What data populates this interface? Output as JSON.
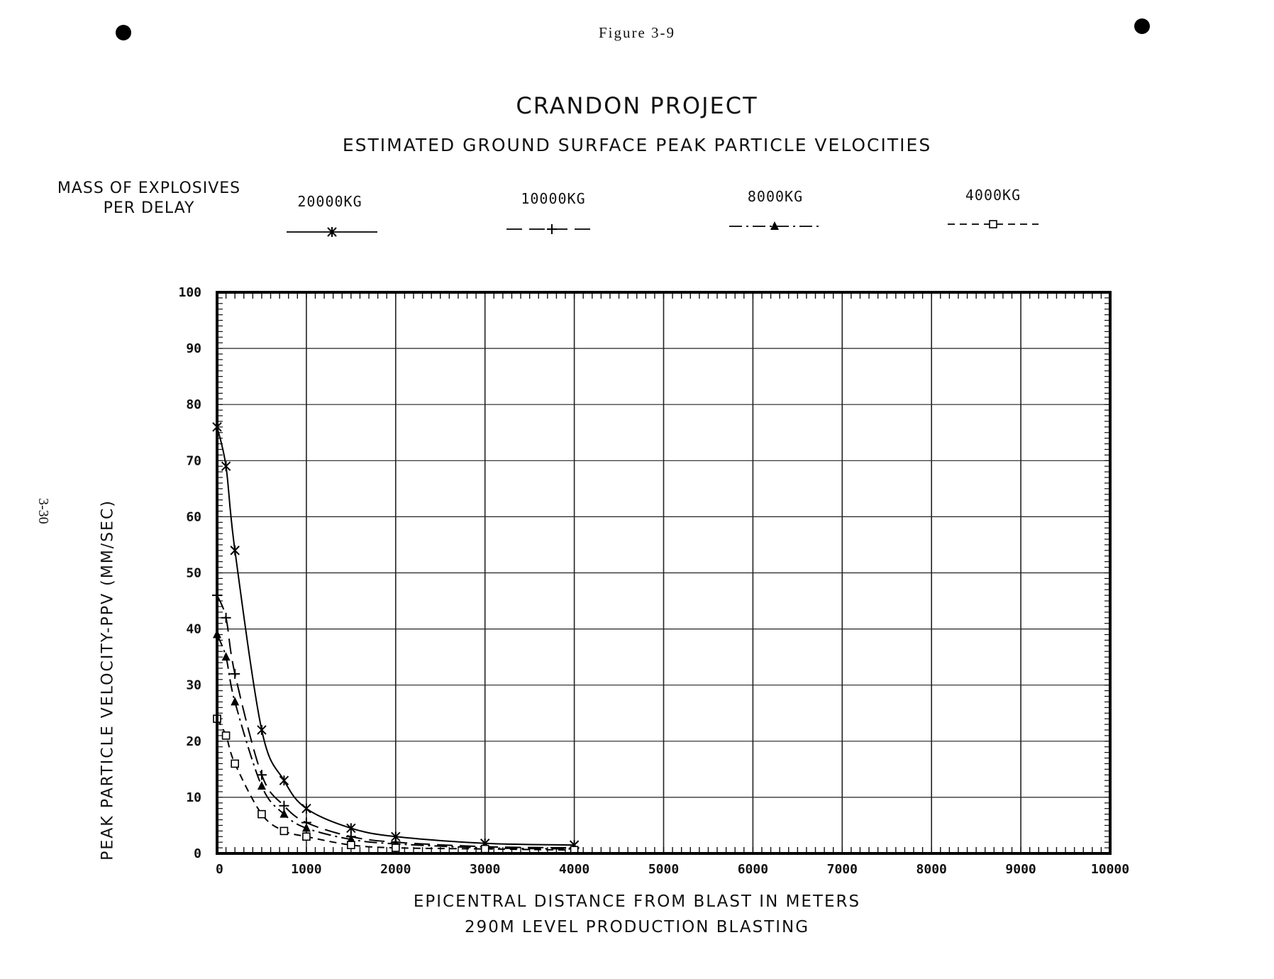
{
  "page": {
    "figure_label": "Figure 3-9",
    "page_number": "3-30",
    "footer": "290M LEVEL PRODUCTION BLASTING"
  },
  "legend": {
    "title_line1": "MASS OF EXPLOSIVES",
    "title_line2": "PER DELAY"
  },
  "chart_data": {
    "type": "line",
    "title": "CRANDON PROJECT",
    "subtitle": "ESTIMATED GROUND SURFACE PEAK PARTICLE VELOCITIES",
    "xlabel": "EPICENTRAL DISTANCE FROM BLAST IN METERS",
    "ylabel": "PEAK PARTICLE VELOCITY-PPV (MM/SEC)",
    "xlim": [
      0,
      10000
    ],
    "ylim": [
      0,
      100
    ],
    "x_ticks": [
      "0",
      "1000",
      "2000",
      "3000",
      "4000",
      "5000",
      "6000",
      "7000",
      "8000",
      "9000",
      "10000"
    ],
    "y_ticks": [
      "0",
      "10",
      "20",
      "30",
      "40",
      "50",
      "60",
      "70",
      "80",
      "90",
      "100"
    ],
    "grid": true,
    "legend_position": "top",
    "series": [
      {
        "name": "20000KG",
        "marker": "asterisk",
        "line_style": "solid",
        "x": [
          0,
          100,
          200,
          500,
          750,
          1000,
          1500,
          2000,
          3000,
          4000
        ],
        "y": [
          76,
          69,
          54,
          22,
          13,
          8,
          4.5,
          3,
          1.8,
          1.5
        ]
      },
      {
        "name": "10000KG",
        "marker": "plus",
        "line_style": "long-dash",
        "x": [
          0,
          100,
          200,
          500,
          750,
          1000,
          1500,
          2000,
          3000,
          4000
        ],
        "y": [
          46,
          42,
          32,
          14,
          8.5,
          5.5,
          3,
          2,
          1.2,
          1
        ]
      },
      {
        "name": "8000KG",
        "marker": "triangle",
        "line_style": "dash-dot",
        "x": [
          0,
          100,
          200,
          500,
          750,
          1000,
          1500,
          2000,
          3000,
          4000
        ],
        "y": [
          39,
          35,
          27,
          12,
          7,
          4.5,
          2.5,
          1.7,
          1,
          0.8
        ]
      },
      {
        "name": "4000KG",
        "marker": "square",
        "line_style": "dash",
        "x": [
          0,
          100,
          200,
          500,
          750,
          1000,
          1500,
          2000,
          3000,
          4000
        ],
        "y": [
          24,
          21,
          16,
          7,
          4,
          3,
          1.5,
          1,
          0.8,
          0.6
        ]
      }
    ]
  }
}
